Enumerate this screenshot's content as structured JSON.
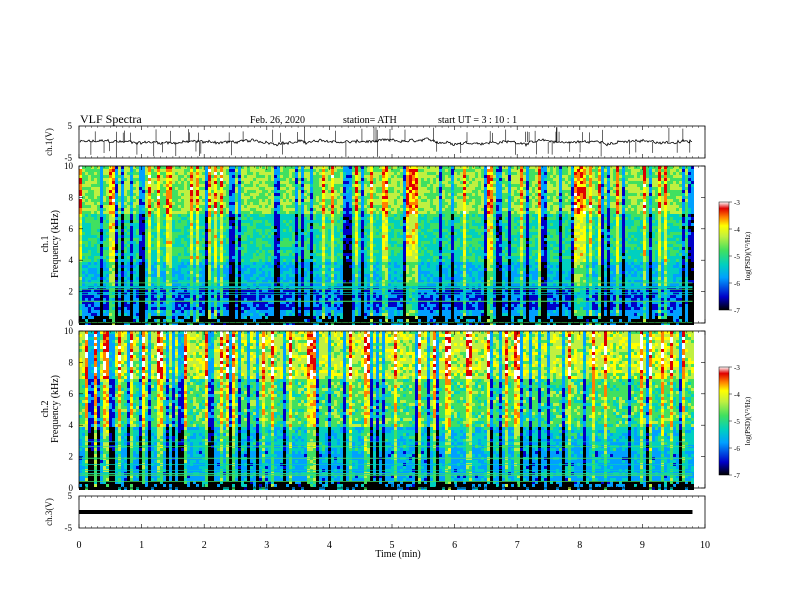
{
  "header": {
    "title": "VLF Spectra",
    "date": "Feb. 26, 2020",
    "station": "station= ATH",
    "start_ut": "start UT =  3 : 10 : 1"
  },
  "colorbar": {
    "ticks": [
      "-3",
      "-4",
      "-5",
      "-6",
      "-7"
    ],
    "label": "log(PSD)(V²/Hz)",
    "colors": [
      "#000000",
      "#0000c8",
      "#00a0ff",
      "#00d0c0",
      "#40e060",
      "#c0f040",
      "#ffff00",
      "#ff8000",
      "#e00000",
      "#ffffff"
    ]
  },
  "chart_data": [
    {
      "type": "line",
      "panel": "ch1_waveform",
      "ylabel": "ch.1(V)",
      "yticks": [
        "5",
        "-5"
      ],
      "ylim": [
        -5,
        5
      ],
      "xlim": [
        0,
        10
      ],
      "series": [
        {
          "values_note_x_min": [
            0,
            9.8
          ],
          "baseline_v": 0.0,
          "noise_amp_v": 1.0
        }
      ]
    },
    {
      "type": "heatmap",
      "panel": "ch1_spectrogram",
      "ylabel_top": "ch.1",
      "ylabel": "Frequency (kHz)",
      "yticks": [
        "0",
        "2",
        "4",
        "6",
        "8",
        "10"
      ],
      "ylim": [
        0,
        10
      ],
      "xlim": [
        0,
        10
      ],
      "data_end_min": 9.8,
      "zlim": [
        -7,
        -3
      ]
    },
    {
      "type": "heatmap",
      "panel": "ch2_spectrogram",
      "ylabel_top": "ch.2",
      "ylabel": "Frequency (kHz)",
      "yticks": [
        "0",
        "2",
        "4",
        "6",
        "8",
        "10"
      ],
      "ylim": [
        0,
        10
      ],
      "xlim": [
        0,
        10
      ],
      "data_end_min": 9.8,
      "zlim": [
        -7,
        -3
      ]
    },
    {
      "type": "line",
      "panel": "ch3_waveform",
      "ylabel": "ch.3(V)",
      "yticks": [
        "5",
        "-5"
      ],
      "ylim": [
        -5,
        5
      ],
      "xlim": [
        0,
        10
      ],
      "series": [
        {
          "constant_v": 0.0,
          "x_range_min": [
            0,
            9.8
          ]
        }
      ]
    }
  ],
  "xaxis": {
    "label": "Time (min)",
    "ticks": [
      "0",
      "1",
      "2",
      "3",
      "4",
      "5",
      "6",
      "7",
      "8",
      "9",
      "10"
    ]
  }
}
